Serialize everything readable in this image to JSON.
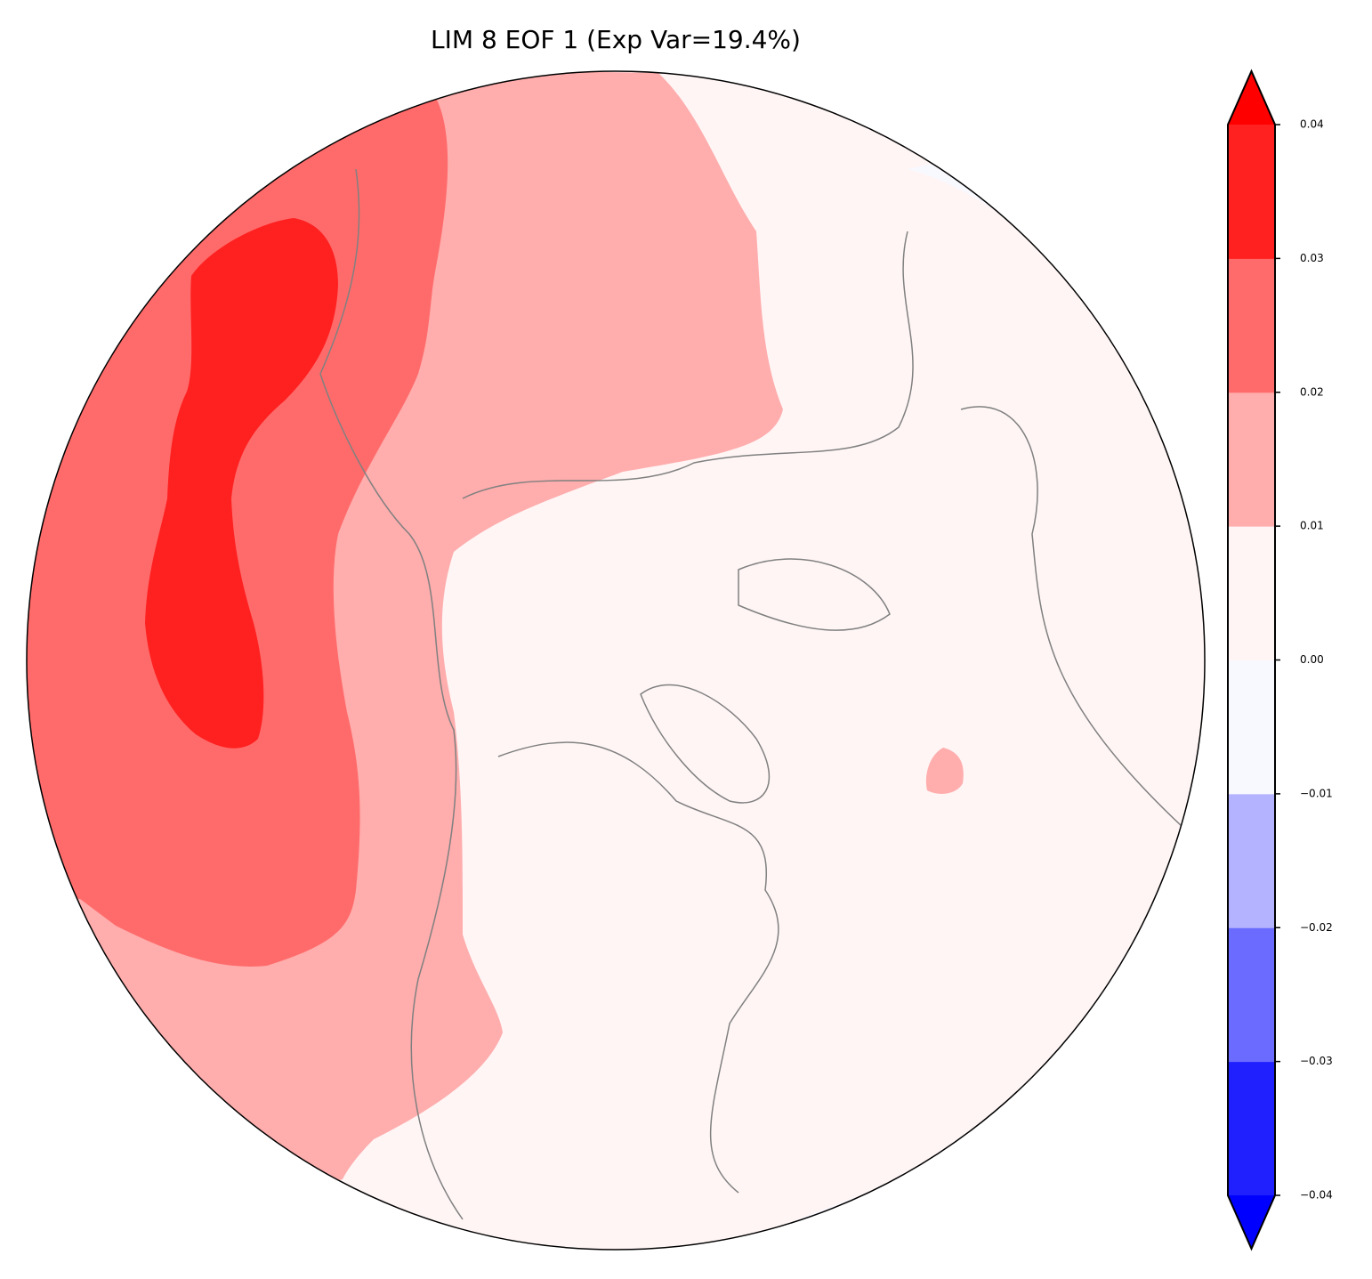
{
  "chart_data": {
    "type": "contour_map",
    "title": "LIM 8 EOF 1 (Exp Var=19.4%)",
    "colorbar": {
      "clim": [
        -0.04,
        0.04
      ],
      "ticks": [
        {
          "value": -0.04,
          "label": "−0.04"
        },
        {
          "value": -0.03,
          "label": "−0.03"
        },
        {
          "value": -0.02,
          "label": "−0.02"
        },
        {
          "value": -0.01,
          "label": "−0.01"
        },
        {
          "value": 0,
          "label": "0.00"
        },
        0.01,
        0.02,
        0.03,
        0.04
      ],
      "colors": [
        "#2020ff",
        "#6b6bff",
        "#b3b3ff",
        "#f8f8ff",
        "#fff5f5",
        "#ffadad",
        "#ff6b6b",
        "#ff2020"
      ],
      "under_color": "#0000ff",
      "over_color": "#ff0000"
    }
  }
}
